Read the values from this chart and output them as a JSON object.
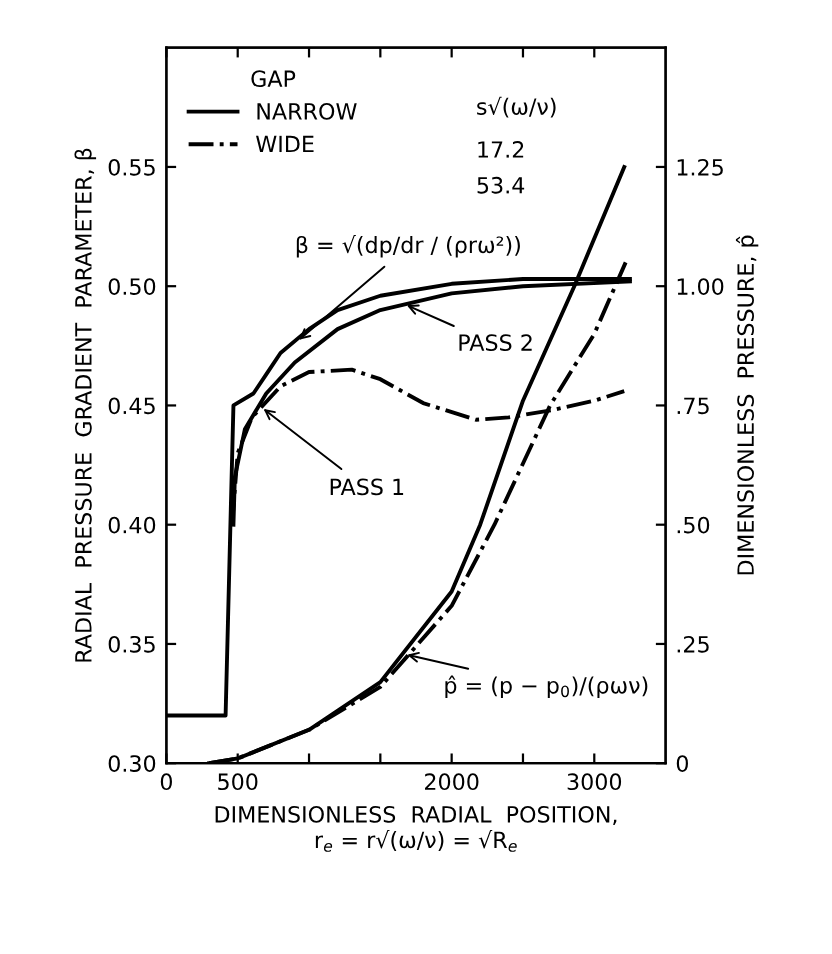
{
  "chart_data": {
    "type": "line",
    "xlabel": "DIMENSIONLESS  RADIAL  POSITION,\nr$_{e}$ = r√(ω/ν) = √R$_{e}$",
    "ylabel": "RADIAL  PRESSURE  GRADIENT  PARAMETER, β",
    "y2label": "DIMENSIONLESS  PRESSURE, p̂",
    "legend_title": "GAP",
    "legend": "top left",
    "xlim": [
      0,
      3500
    ],
    "xticks": [
      0,
      500,
      {
        "value": 1000,
        "label": null
      },
      {
        "value": 1500,
        "label": null
      },
      2000,
      {
        "value": 2500,
        "label": null
      },
      3000
    ],
    "ylim": [
      0.3,
      0.6
    ],
    "yticks": [
      {
        "value": 0.3,
        "label": "0.30"
      },
      {
        "value": 0.35,
        "label": "0.35"
      },
      {
        "value": 0.4,
        "label": "0.40"
      },
      {
        "value": 0.45,
        "label": "0.45"
      },
      {
        "value": 0.5,
        "label": "0.50"
      },
      {
        "value": 0.55,
        "label": "0.55"
      }
    ],
    "y2lim": [
      0,
      1.5
    ],
    "y2ticks": [
      0,
      {
        "value": 0.25,
        "label": ".25"
      },
      {
        "value": 0.5,
        "label": ".50"
      },
      {
        "value": 0.75,
        "label": ".75"
      },
      {
        "value": 1.0,
        "label": "1.00"
      },
      {
        "value": 1.25,
        "label": "1.25"
      }
    ],
    "grid": false,
    "marker": "none",
    "series": [
      {
        "name": "NARROW",
        "color": "#000000",
        "line_style": "solid",
        "x": [
          0,
          415,
          470,
          610,
          700,
          800,
          1000,
          1200,
          1500,
          2000,
          2500,
          3250
        ],
        "values": [
          0.32,
          0.32,
          0.45,
          0.455,
          0.463,
          0.472,
          0.482,
          0.49,
          0.496,
          0.501,
          0.503,
          0.503
        ]
      },
      {
        "color": "#000000",
        "line_style": "solid",
        "x": [
          470,
          480,
          550,
          700,
          900,
          1200,
          1500,
          2000,
          2500,
          3250
        ],
        "values": [
          0.4,
          0.42,
          0.44,
          0.455,
          0.468,
          0.482,
          0.49,
          0.497,
          0.5,
          0.502
        ]
      },
      {
        "name": "WIDE",
        "color": "#000000",
        "line_style": "dashdot",
        "x": [
          460,
          500,
          600,
          800,
          1000,
          1300,
          1500,
          1800,
          2170,
          2400,
          2700,
          3000,
          3210
        ],
        "values": [
          0.4,
          0.43,
          0.445,
          0.458,
          0.464,
          0.465,
          0.461,
          0.451,
          0.444,
          0.445,
          0.448,
          0.452,
          0.456
        ]
      },
      {
        "color": "#000000",
        "line_style": "solid",
        "axis": "y2",
        "x": [
          300,
          500,
          1000,
          1500,
          2000,
          2200,
          2500,
          2860,
          3210
        ],
        "values": [
          0,
          0.01,
          0.07,
          0.17,
          0.36,
          0.5,
          0.76,
          1.0,
          1.25
        ]
      },
      {
        "color": "#000000",
        "line_style": "dashdot",
        "axis": "y2",
        "x": [
          300,
          500,
          1000,
          1500,
          2000,
          2300,
          2690,
          3000,
          3220
        ],
        "values": [
          0,
          0.01,
          0.07,
          0.16,
          0.33,
          0.5,
          0.75,
          0.9,
          1.05
        ]
      }
    ],
    "annotations": [
      {
        "text": "PASS 1",
        "x": 650,
        "y": 0.45
      },
      {
        "text": "PASS 2",
        "x": 1650,
        "y": 0.493
      },
      {
        "text": "β = √(dp/dr / (ρrω²))",
        "x": 900,
        "y": 0.476
      },
      {
        "text": "p̂ = (p − p$_{0}$)/(ρων)",
        "x": 1650,
        "y": 0.346
      },
      "s√(ω/ν)",
      "17.2",
      "53.4"
    ]
  }
}
